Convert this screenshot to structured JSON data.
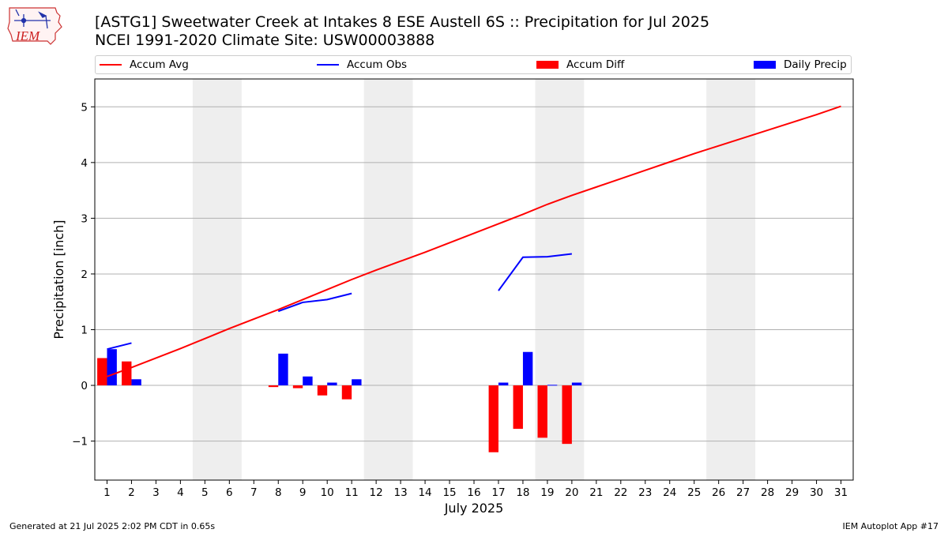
{
  "header": {
    "logo_text": "IEM",
    "title_line1": "[ASTG1] Sweetwater Creek at Intakes 8 ESE Austell 6S :: Precipitation for Jul 2025",
    "title_line2": "NCEI 1991-2020 Climate Site: USW00003888"
  },
  "legend": {
    "accum_avg": "Accum Avg",
    "accum_obs": "Accum Obs",
    "accum_diff": "Accum Diff",
    "daily_precip": "Daily Precip"
  },
  "footer": {
    "generated": "Generated at 21 Jul 2025 2:02 PM CDT in 0.65s",
    "app": "IEM Autoplot App #17"
  },
  "colors": {
    "avg": "#ff0000",
    "obs": "#0000ff",
    "diff": "#ff0000",
    "daily": "#0000ff",
    "weekend_shade": "#eeeeee",
    "grid": "#b0b0b0"
  },
  "chart_data": {
    "type": "bar",
    "xlabel": "July 2025",
    "ylabel": "Precipitation [inch]",
    "xlim": [
      0.5,
      31.5
    ],
    "ylim": [
      -1.7,
      5.5
    ],
    "yticks": [
      "−1",
      "0",
      "1",
      "2",
      "3",
      "4",
      "5"
    ],
    "ytick_values": [
      -1,
      0,
      1,
      2,
      3,
      4,
      5
    ],
    "days": [
      1,
      2,
      3,
      4,
      5,
      6,
      7,
      8,
      9,
      10,
      11,
      12,
      13,
      14,
      15,
      16,
      17,
      18,
      19,
      20,
      21,
      22,
      23,
      24,
      25,
      26,
      27,
      28,
      29,
      30,
      31
    ],
    "weekend_shading": [
      [
        5,
        6
      ],
      [
        12,
        13
      ],
      [
        19,
        20
      ],
      [
        26,
        27
      ]
    ],
    "grid": "horizontal",
    "series": [
      {
        "name": "Accum Avg",
        "kind": "line",
        "x": [
          1,
          2,
          3,
          4,
          5,
          6,
          7,
          8,
          9,
          10,
          11,
          12,
          13,
          14,
          15,
          16,
          17,
          18,
          19,
          20,
          21,
          22,
          23,
          24,
          25,
          26,
          27,
          28,
          29,
          30,
          31
        ],
        "values": [
          0.16,
          0.32,
          0.49,
          0.66,
          0.84,
          1.02,
          1.19,
          1.36,
          1.54,
          1.72,
          1.9,
          2.07,
          2.23,
          2.39,
          2.56,
          2.73,
          2.9,
          3.07,
          3.25,
          3.41,
          3.56,
          3.71,
          3.86,
          4.01,
          4.16,
          4.3,
          4.44,
          4.58,
          4.72,
          4.86,
          5.01
        ]
      },
      {
        "name": "Accum Obs",
        "kind": "line",
        "segments": [
          {
            "x": [
              1,
              2
            ],
            "values": [
              0.65,
              0.76
            ]
          },
          {
            "x": [
              8,
              9,
              10,
              11
            ],
            "values": [
              1.33,
              1.49,
              1.54,
              1.65
            ]
          },
          {
            "x": [
              17,
              18,
              19,
              20
            ],
            "values": [
              1.7,
              2.3,
              2.31,
              2.36
            ]
          }
        ]
      },
      {
        "name": "Accum Diff",
        "kind": "bar",
        "x": [
          1,
          2,
          8,
          9,
          10,
          11,
          17,
          18,
          19,
          20
        ],
        "values": [
          0.49,
          0.43,
          -0.03,
          -0.05,
          -0.18,
          -0.25,
          -1.2,
          -0.78,
          -0.94,
          -1.05
        ]
      },
      {
        "name": "Daily Precip",
        "kind": "bar",
        "x": [
          1,
          2,
          8,
          9,
          10,
          11,
          17,
          18,
          19,
          20
        ],
        "values": [
          0.65,
          0.11,
          0.57,
          0.16,
          0.05,
          0.11,
          0.05,
          0.6,
          0.01,
          0.05
        ]
      }
    ]
  }
}
